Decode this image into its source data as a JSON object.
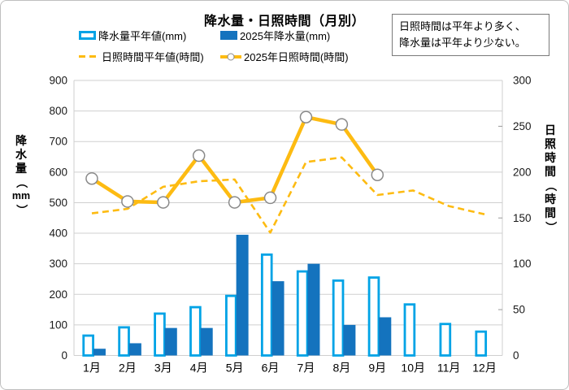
{
  "title": "降水量・日照時間（月別）",
  "legend": [
    {
      "label": "降水量平年値(mm)",
      "swatch": "outlined-bar"
    },
    {
      "label": "2025年降水量(mm)",
      "swatch": "filled-bar"
    },
    {
      "label": "日照時間平年値(時間)",
      "swatch": "dashed-line"
    },
    {
      "label": "2025年日照時間(時間)",
      "swatch": "solid-line-with-marker"
    }
  ],
  "annotation": {
    "line1": "日照時間は平年より多く、",
    "line2": "降水量は平年より少ない。"
  },
  "colors": {
    "bar_outline": "#00a3e6",
    "bar_fill": "#1473be",
    "line_gold": "#fdbb12",
    "marker_fill": "#ffffff",
    "marker_border": "#8a8a8a",
    "gridline": "#cfcfcf",
    "tick_text": "#1a1a1a"
  },
  "chart_data": {
    "type": "combo",
    "title": "降水量・日照時間（月別）",
    "grid": true,
    "legend_position": "top",
    "categories": [
      "1月",
      "2月",
      "3月",
      "4月",
      "5月",
      "6月",
      "7月",
      "8月",
      "9月",
      "10月",
      "11月",
      "12月"
    ],
    "left_axis": {
      "label": "降水量（mm）",
      "min": 0,
      "max": 900,
      "tick_step": 100,
      "ticks": [
        0,
        100,
        200,
        300,
        400,
        500,
        600,
        700,
        800,
        900
      ]
    },
    "right_axis": {
      "label": "日照時間（時間）",
      "min": 0,
      "max": 300,
      "tick_step": 50,
      "ticks": [
        0,
        50,
        100,
        150,
        200,
        250,
        300
      ]
    },
    "series": [
      {
        "name": "降水量平年値(mm)",
        "type": "bar",
        "style": "outlined",
        "axis": "left",
        "values": [
          65,
          92,
          137,
          158,
          195,
          330,
          275,
          245,
          255,
          167,
          103,
          78
        ]
      },
      {
        "name": "2025年降水量(mm)",
        "type": "bar",
        "style": "filled",
        "axis": "left",
        "values": [
          22,
          40,
          90,
          90,
          395,
          243,
          300,
          100,
          125,
          null,
          null,
          null
        ]
      },
      {
        "name": "日照時間平年値(時間)",
        "type": "line",
        "style": "dashed",
        "axis": "right",
        "values": [
          155,
          160,
          184,
          190,
          192,
          134,
          211,
          216,
          175,
          180,
          163,
          154
        ]
      },
      {
        "name": "2025年日照時間(時間)",
        "type": "line",
        "style": "solid-marker",
        "axis": "right",
        "values": [
          193,
          168,
          167,
          218,
          167,
          172,
          260,
          252,
          197,
          null,
          null,
          null
        ]
      }
    ]
  }
}
